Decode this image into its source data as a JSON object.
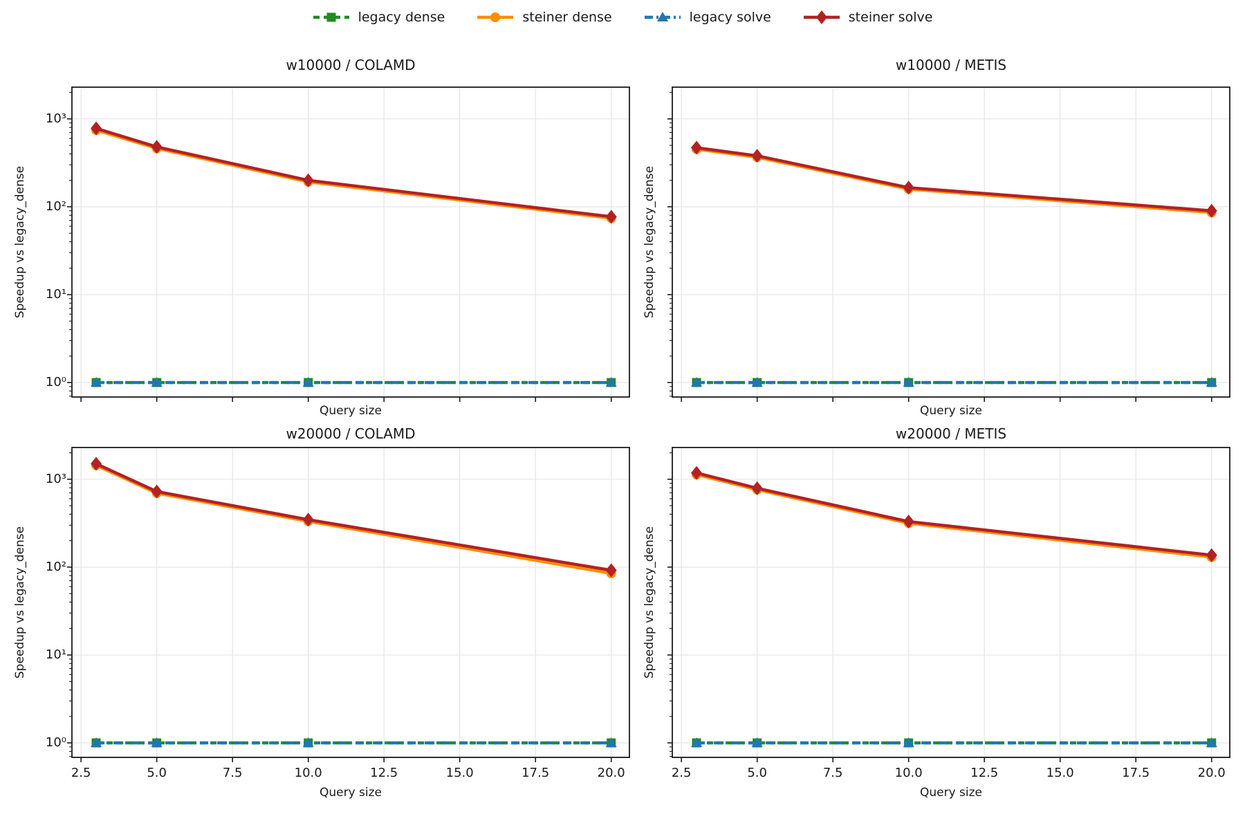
{
  "figure": {
    "background": "#ffffff"
  },
  "legend": {
    "position": "top center",
    "items": [
      {
        "label": "legacy dense",
        "color": "#228B22",
        "marker": "square",
        "dash": "9 6"
      },
      {
        "label": "steiner dense",
        "color": "#FF8C00",
        "marker": "circle",
        "dash": ""
      },
      {
        "label": "legacy solve",
        "color": "#1F77B4",
        "marker": "triangle",
        "dash": "12 5 3 5"
      },
      {
        "label": "steiner solve",
        "color": "#B22222",
        "marker": "diamond",
        "dash": ""
      }
    ]
  },
  "axes": {
    "xlabel": "Query size",
    "ylabel": "Speedup vs legacy_dense",
    "x_tick_values": [
      2.5,
      5.0,
      7.5,
      10.0,
      12.5,
      15.0,
      17.5,
      20.0
    ],
    "x_tick_labels": [
      "2.5",
      "5.0",
      "7.5",
      "10.0",
      "12.5",
      "15.0",
      "17.5",
      "20.0"
    ],
    "y_tick_exponents": [
      0,
      1,
      2,
      3
    ],
    "y_tick_labels": [
      "10⁰",
      "10¹",
      "10²",
      "10³"
    ],
    "xlim": [
      2.2,
      20.6
    ],
    "ylim": [
      0.684,
      2297
    ],
    "yscale": "log",
    "grid": true,
    "grid_color": "#e2e2e2",
    "spine_color": "#1a1a1a"
  },
  "chart_data": [
    {
      "type": "line",
      "title": "w10000 / COLAMD",
      "x": [
        3,
        5,
        10,
        20
      ],
      "series": [
        {
          "name": "legacy dense",
          "values": [
            1.0,
            1.0,
            1.0,
            1.0
          ]
        },
        {
          "name": "steiner dense",
          "values": [
            745,
            462,
            192,
            74
          ]
        },
        {
          "name": "legacy solve",
          "values": [
            1.0,
            1.0,
            1.0,
            1.0
          ]
        },
        {
          "name": "steiner solve",
          "values": [
            780,
            480,
            200,
            77
          ]
        }
      ],
      "x_ticklabels_visible": false,
      "y_ticklabels_visible": true
    },
    {
      "type": "line",
      "title": "w10000 / METIS",
      "x": [
        3,
        5,
        10,
        20
      ],
      "series": [
        {
          "name": "legacy dense",
          "values": [
            1.0,
            1.0,
            1.0,
            1.0
          ]
        },
        {
          "name": "steiner dense",
          "values": [
            452,
            366,
            159,
            86
          ]
        },
        {
          "name": "legacy solve",
          "values": [
            1.0,
            1.0,
            1.0,
            1.0
          ]
        },
        {
          "name": "steiner solve",
          "values": [
            470,
            380,
            165,
            90
          ]
        }
      ],
      "x_ticklabels_visible": false,
      "y_ticklabels_visible": false
    },
    {
      "type": "line",
      "title": "w20000 / COLAMD",
      "x": [
        3,
        5,
        10,
        20
      ],
      "series": [
        {
          "name": "legacy dense",
          "values": [
            1.0,
            1.0,
            1.0,
            1.0
          ]
        },
        {
          "name": "steiner dense",
          "values": [
            1440,
            695,
            332,
            85
          ]
        },
        {
          "name": "legacy solve",
          "values": [
            1.0,
            1.0,
            1.0,
            1.0
          ]
        },
        {
          "name": "steiner solve",
          "values": [
            1500,
            725,
            347,
            92
          ]
        }
      ],
      "x_ticklabels_visible": true,
      "y_ticklabels_visible": true
    },
    {
      "type": "line",
      "title": "w20000 / METIS",
      "x": [
        3,
        5,
        10,
        20
      ],
      "series": [
        {
          "name": "legacy dense",
          "values": [
            1.0,
            1.0,
            1.0,
            1.0
          ]
        },
        {
          "name": "steiner dense",
          "values": [
            1130,
            760,
            316,
            130
          ]
        },
        {
          "name": "legacy solve",
          "values": [
            1.0,
            1.0,
            1.0,
            1.0
          ]
        },
        {
          "name": "steiner solve",
          "values": [
            1180,
            790,
            330,
            137
          ]
        }
      ],
      "x_ticklabels_visible": true,
      "y_ticklabels_visible": false
    }
  ]
}
